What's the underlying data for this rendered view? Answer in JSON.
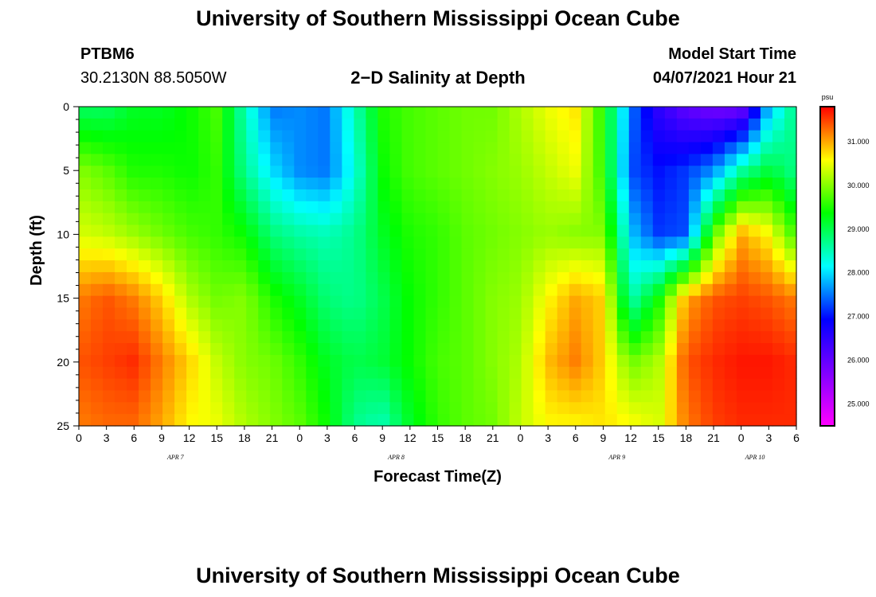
{
  "header": {
    "top_title": "University of Southern Mississippi Ocean Cube",
    "bottom_title": "University of Southern Mississippi Ocean Cube",
    "station_id": "PTBM6",
    "station_coords": "30.2130N  88.5050W",
    "plot_title": "2−D Salinity at Depth",
    "model_label": "Model Start Time",
    "model_time": "04/07/2021 Hour 21"
  },
  "chart_data": {
    "type": "heatmap",
    "title": "2−D Salinity at Depth",
    "xlabel": "Forecast Time(Z)",
    "ylabel": "Depth (ft)",
    "colorbar_label": "psu",
    "x_start_hour": 0,
    "x_end_hour": 78,
    "x_tick_step_hours": 3,
    "x_tick_labels": [
      "0",
      "3",
      "6",
      "9",
      "12",
      "15",
      "18",
      "21",
      "0",
      "3",
      "6",
      "9",
      "12",
      "15",
      "18",
      "21",
      "0",
      "3",
      "6",
      "9",
      "12",
      "15",
      "18",
      "21",
      "0",
      "3",
      "6"
    ],
    "date_labels": [
      {
        "hour": 10.5,
        "text": "APR 7"
      },
      {
        "hour": 34.5,
        "text": "APR 8"
      },
      {
        "hour": 58.5,
        "text": "APR 9"
      },
      {
        "hour": 73.5,
        "text": "APR 10"
      }
    ],
    "y_ticks": [
      0,
      5,
      10,
      15,
      20,
      25
    ],
    "ylim": [
      0,
      25
    ],
    "colorbar_ticks": [
      "25.000",
      "26.000",
      "27.000",
      "28.000",
      "29.000",
      "30.000",
      "31.000"
    ],
    "color_range": [
      24.5,
      31.8
    ],
    "colormap": [
      "#ff00ff",
      "#8000ff",
      "#0000ff",
      "#00ffff",
      "#00ff00",
      "#ffff00",
      "#ff0000"
    ],
    "grid": false,
    "depths_ft": [
      0,
      5,
      10,
      15,
      20,
      25
    ],
    "times_h": [
      0,
      3,
      6,
      9,
      12,
      15,
      18,
      21,
      24,
      27,
      30,
      33,
      36,
      39,
      42,
      45,
      48,
      51,
      54,
      57,
      60,
      63,
      66,
      69,
      72,
      75,
      78
    ],
    "salinity_psu": [
      [
        28.9,
        28.9,
        29.2,
        29.2,
        29.4,
        29.7,
        28.5,
        27.5,
        27.6,
        27.5,
        28.5,
        29.5,
        29.7,
        29.8,
        29.9,
        29.9,
        30.2,
        30.5,
        30.7,
        29.5,
        27.5,
        26.5,
        26.0,
        25.8,
        25.8,
        27.8,
        28.8
      ],
      [
        30.0,
        29.8,
        29.5,
        29.5,
        29.4,
        29.6,
        28.7,
        28.0,
        27.6,
        27.5,
        28.3,
        29.4,
        29.7,
        29.8,
        29.9,
        30.0,
        30.1,
        30.3,
        30.5,
        29.6,
        27.3,
        27.0,
        27.2,
        27.6,
        28.6,
        29.1,
        28.7
      ],
      [
        30.4,
        30.3,
        30.1,
        29.9,
        29.7,
        29.6,
        29.4,
        28.8,
        28.6,
        28.5,
        28.7,
        29.2,
        29.5,
        29.6,
        29.8,
        29.9,
        30.0,
        30.1,
        30.0,
        30.0,
        27.9,
        27.2,
        27.3,
        29.8,
        31.0,
        30.6,
        29.6
      ],
      [
        31.2,
        31.4,
        31.2,
        30.8,
        30.2,
        29.9,
        30.0,
        29.5,
        29.2,
        28.8,
        28.7,
        29.0,
        29.4,
        29.6,
        29.8,
        30.0,
        30.1,
        30.6,
        31.0,
        30.8,
        28.5,
        29.4,
        31.0,
        31.4,
        31.5,
        31.4,
        31.2
      ],
      [
        31.4,
        31.5,
        31.6,
        31.2,
        30.8,
        30.3,
        30.0,
        29.9,
        29.6,
        29.2,
        29.0,
        29.1,
        29.4,
        29.7,
        29.8,
        30.0,
        30.2,
        30.9,
        31.2,
        30.8,
        29.9,
        30.2,
        31.4,
        31.6,
        31.7,
        31.7,
        31.6
      ],
      [
        31.2,
        31.3,
        31.3,
        31.0,
        30.6,
        30.5,
        30.2,
        30.0,
        29.8,
        29.4,
        28.7,
        28.5,
        29.2,
        29.6,
        29.8,
        29.9,
        30.3,
        30.6,
        30.6,
        30.7,
        30.6,
        30.4,
        31.2,
        31.5,
        31.6,
        31.6,
        31.6
      ]
    ]
  }
}
